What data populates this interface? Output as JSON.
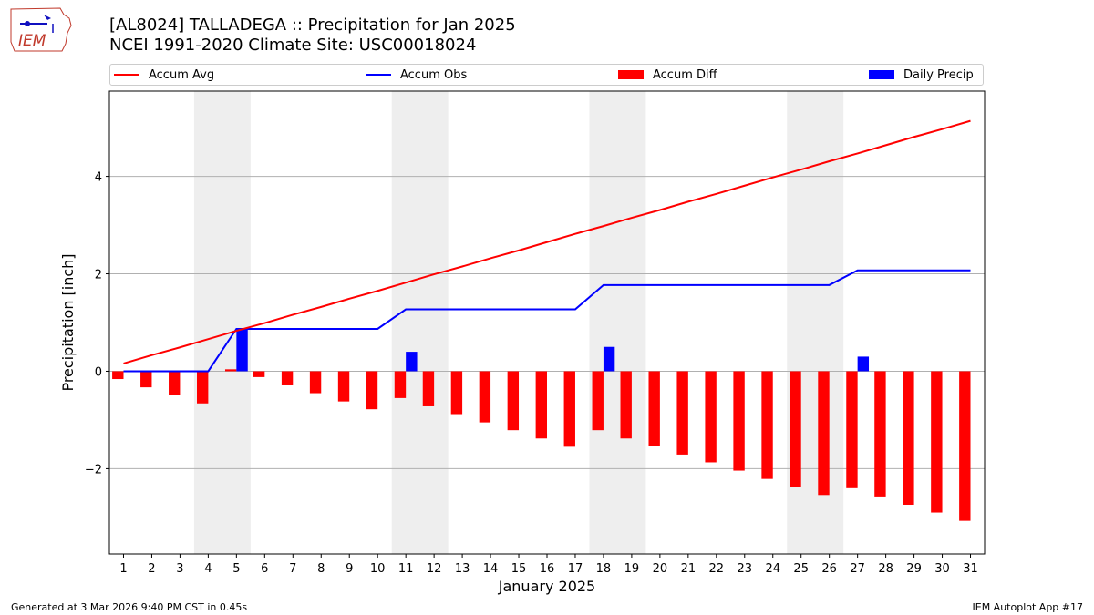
{
  "header": {
    "title_line1": "[AL8024] TALLADEGA :: Precipitation for Jan 2025",
    "title_line2": "NCEI 1991-2020 Climate Site: USC00018024"
  },
  "logo": {
    "text": "IEM"
  },
  "legend": [
    {
      "label": "Accum Avg",
      "kind": "line",
      "color": "#ff0000"
    },
    {
      "label": "Accum Obs",
      "kind": "line",
      "color": "#0000ff"
    },
    {
      "label": "Accum Diff",
      "kind": "bar",
      "color": "#ff0000"
    },
    {
      "label": "Daily Precip",
      "kind": "bar",
      "color": "#0000ff"
    }
  ],
  "footer": {
    "left": "Generated at 3 Mar 2026 9:40 PM CST in 0.45s",
    "right": "IEM Autoplot App #17"
  },
  "chart_data": {
    "type": "bar",
    "xlabel": "January 2025",
    "ylabel": "Precipitation [inch]",
    "xlim": [
      0.5,
      31.5
    ],
    "ylim": [
      -3.75,
      5.75
    ],
    "yticks": [
      -2,
      0,
      2,
      4
    ],
    "ytick_labels": [
      "−2",
      "0",
      "2",
      "4"
    ],
    "grid": "horizontal",
    "legend_position": "top",
    "days": [
      1,
      2,
      3,
      4,
      5,
      6,
      7,
      8,
      9,
      10,
      11,
      12,
      13,
      14,
      15,
      16,
      17,
      18,
      19,
      20,
      21,
      22,
      23,
      24,
      25,
      26,
      27,
      28,
      29,
      30,
      31
    ],
    "weekend_spans": [
      [
        3.5,
        5.5
      ],
      [
        10.5,
        12.5
      ],
      [
        17.5,
        19.5
      ],
      [
        24.5,
        26.5
      ]
    ],
    "series": [
      {
        "name": "Accum Avg",
        "type": "line",
        "color": "#ff0000",
        "values": [
          0.16,
          0.33,
          0.49,
          0.66,
          0.83,
          0.99,
          1.16,
          1.32,
          1.49,
          1.65,
          1.82,
          1.99,
          2.15,
          2.32,
          2.48,
          2.65,
          2.82,
          2.98,
          3.15,
          3.31,
          3.48,
          3.64,
          3.81,
          3.98,
          4.14,
          4.31,
          4.47,
          4.64,
          4.81,
          4.97,
          5.14
        ]
      },
      {
        "name": "Accum Obs",
        "type": "line",
        "color": "#0000ff",
        "values": [
          0,
          0,
          0,
          0,
          0.87,
          0.87,
          0.87,
          0.87,
          0.87,
          0.87,
          1.27,
          1.27,
          1.27,
          1.27,
          1.27,
          1.27,
          1.27,
          1.77,
          1.77,
          1.77,
          1.77,
          1.77,
          1.77,
          1.77,
          1.77,
          1.77,
          2.07,
          2.07,
          2.07,
          2.07,
          2.07
        ]
      },
      {
        "name": "Accum Diff",
        "type": "bar",
        "color": "#ff0000",
        "values": [
          -0.16,
          -0.33,
          -0.49,
          -0.66,
          0.04,
          -0.12,
          -0.29,
          -0.45,
          -0.62,
          -0.78,
          -0.55,
          -0.72,
          -0.88,
          -1.05,
          -1.21,
          -1.38,
          -1.55,
          -1.21,
          -1.38,
          -1.54,
          -1.71,
          -1.87,
          -2.04,
          -2.21,
          -2.37,
          -2.54,
          -2.4,
          -2.57,
          -2.74,
          -2.9,
          -3.07
        ]
      },
      {
        "name": "Daily Precip",
        "type": "bar",
        "color": "#0000ff",
        "values": [
          0,
          0,
          0,
          0,
          0.87,
          0,
          0,
          0,
          0,
          0,
          0.4,
          0,
          0,
          0,
          0,
          0,
          0,
          0.5,
          0,
          0,
          0,
          0,
          0,
          0,
          0,
          0,
          0.3,
          0,
          0,
          0,
          0
        ]
      }
    ]
  }
}
